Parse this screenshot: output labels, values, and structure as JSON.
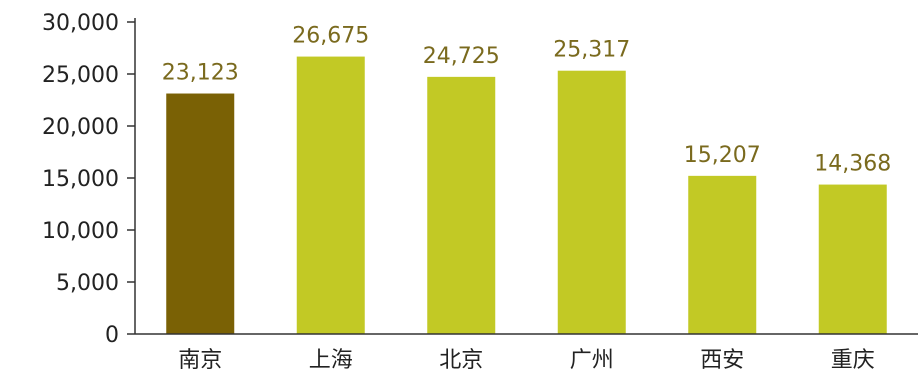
{
  "chart_data": {
    "type": "bar",
    "categories": [
      "南京",
      "上海",
      "北京",
      "广州",
      "西安",
      "重庆"
    ],
    "values": [
      23123,
      26675,
      24725,
      25317,
      15207,
      14368
    ],
    "value_labels": [
      "23,123",
      "26,675",
      "24,725",
      "25,317",
      "15,207",
      "14,368"
    ],
    "ylim": [
      0,
      30000
    ],
    "yticks": [
      0,
      5000,
      10000,
      15000,
      20000,
      25000,
      30000
    ],
    "ytick_labels": [
      "0",
      "5,000",
      "10,000",
      "15,000",
      "20,000",
      "25,000",
      "30,000"
    ],
    "highlight_index": 0,
    "colors": {
      "bar": "#c2c925",
      "highlight": "#7a6105",
      "data_label": "#7a6a1e",
      "axis": "#333333",
      "text": "#222222"
    },
    "grid": false,
    "legend": "none"
  }
}
